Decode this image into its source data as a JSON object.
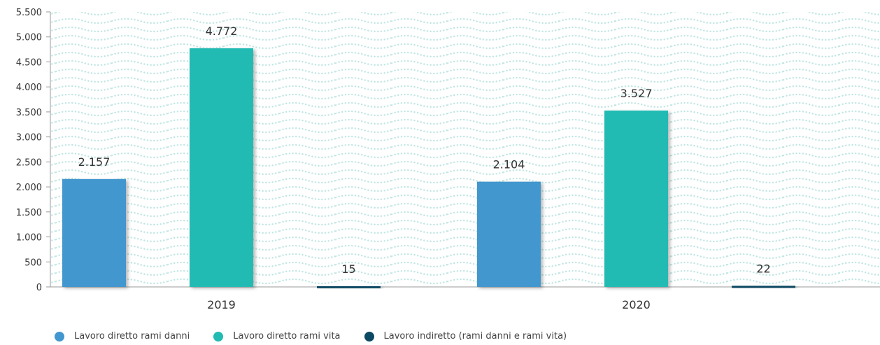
{
  "chart_data": {
    "type": "bar",
    "categories": [
      "2019",
      "2020"
    ],
    "series": [
      {
        "name": "Lavoro diretto rami danni",
        "color": "#4297cf",
        "values": [
          2157,
          2104
        ],
        "labels": [
          "2.157",
          "2.104"
        ]
      },
      {
        "name": "Lavoro diretto rami vita",
        "color": "#22bbb3",
        "values": [
          4772,
          3527
        ],
        "labels": [
          "4.772",
          "3.527"
        ]
      },
      {
        "name": "Lavoro indiretto (rami danni e rami vita)",
        "color": "#0c4a64",
        "values": [
          15,
          22
        ],
        "labels": [
          "15",
          "22"
        ]
      }
    ],
    "ylim": [
      0,
      5500
    ],
    "yticks": [
      0,
      500,
      1000,
      1500,
      2000,
      2500,
      3000,
      3500,
      4000,
      4500,
      5000,
      5500
    ],
    "ytick_labels": [
      "0",
      "500",
      "1.000",
      "1.500",
      "2.000",
      "2.500",
      "3.000",
      "3.500",
      "4.000",
      "4.500",
      "5.000",
      "5.500"
    ],
    "legend_position": "bottom-left",
    "background_pattern_color": "#bfe6e2"
  }
}
